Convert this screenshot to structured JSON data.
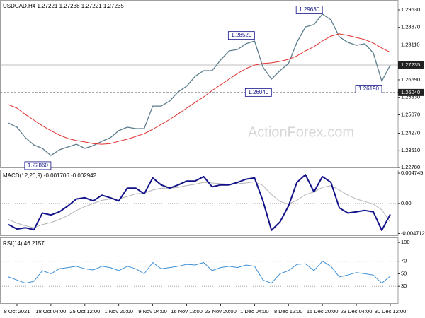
{
  "chart_data": [
    {
      "type": "line",
      "title": "USDCAD,H4  1.27221 1.27238 1.27221 1.27235",
      "watermark": "ActionForex.com",
      "ylim": [
        1.2275,
        1.3006
      ],
      "yticks": [
        {
          "value": 1.2963,
          "label": "1.29630"
        },
        {
          "value": 1.2887,
          "label": "1.28870"
        },
        {
          "value": 1.2811,
          "label": "1.28110"
        },
        {
          "value": 1.2659,
          "label": "1.26590"
        },
        {
          "value": 1.2583,
          "label": "1.25830"
        },
        {
          "value": 1.2507,
          "label": "1.25070"
        },
        {
          "value": 1.2427,
          "label": "1.24270"
        },
        {
          "value": 1.2351,
          "label": "1.23510"
        },
        {
          "value": 1.2278,
          "label": "1.22780"
        }
      ],
      "price_line": {
        "value": 1.27235,
        "label": "1.27235"
      },
      "level": {
        "value": 1.2604,
        "label": "1.26040"
      },
      "annotations": [
        {
          "label": "1.28520",
          "value": 1.2852,
          "x": 29
        },
        {
          "label": "1.29630",
          "value": 1.2963,
          "x": 37
        },
        {
          "label": "1.26040",
          "value": 1.2604,
          "x": 31
        },
        {
          "label": "1.26190",
          "value": 1.2619,
          "x": 44
        },
        {
          "label": "1.22860",
          "value": 1.2286,
          "x": 5
        }
      ],
      "series": [
        {
          "name": "USDCAD",
          "color": "#5b7d8e",
          "width": 1.3,
          "values": [
            1.2471,
            1.2453,
            1.2407,
            1.2376,
            1.2361,
            1.233,
            1.2355,
            1.2367,
            1.2379,
            1.2361,
            1.2373,
            1.2392,
            1.2407,
            1.2438,
            1.2453,
            1.2447,
            1.2447,
            1.2545,
            1.2545,
            1.2567,
            1.2607,
            1.2631,
            1.2674,
            1.2699,
            1.2699,
            1.2745,
            1.2785,
            1.2791,
            1.2816,
            1.2828,
            1.2714,
            1.2662,
            1.2699,
            1.273,
            1.2822,
            1.2889,
            1.2899,
            1.2945,
            1.292,
            1.2846,
            1.2822,
            1.2809,
            1.2816,
            1.2776,
            1.2653,
            1.27235
          ]
        },
        {
          "name": "MA",
          "color": "#e0302e",
          "width": 1,
          "values": [
            1.2551,
            1.2536,
            1.2508,
            1.2484,
            1.2459,
            1.2438,
            1.2419,
            1.2404,
            1.2395,
            1.2389,
            1.2382,
            1.2379,
            1.2382,
            1.2392,
            1.2401,
            1.2413,
            1.2425,
            1.2444,
            1.2465,
            1.2487,
            1.2511,
            1.2536,
            1.2561,
            1.2585,
            1.2613,
            1.2637,
            1.2662,
            1.2687,
            1.2708,
            1.2723,
            1.273,
            1.2733,
            1.2739,
            1.2748,
            1.2763,
            1.2785,
            1.2803,
            1.2828,
            1.2849,
            1.2859,
            1.2852,
            1.2843,
            1.2834,
            1.2819,
            1.2797,
            1.2779
          ]
        }
      ]
    },
    {
      "type": "line",
      "title": "MACD(12,26,9) -0.001706 -0.002942",
      "ylim": [
        -0.0051,
        0.0053
      ],
      "yticks": [
        0.004745,
        {
          "value": 0,
          "label": "0.00"
        },
        -0.004712
      ],
      "levels": [
        0
      ],
      "series": [
        {
          "name": "Signal",
          "color": "#b4b4b4",
          "width": 1,
          "values": [
            -0.0025,
            -0.0031,
            -0.0035,
            -0.0038,
            -0.0033,
            -0.003,
            -0.0025,
            -0.0019,
            -0.0011,
            -0.0005,
            0.0,
            0.0005,
            0.0007,
            0.0007,
            0.0011,
            0.0015,
            0.0016,
            0.0021,
            0.0024,
            0.0024,
            0.0025,
            0.0028,
            0.003,
            0.0033,
            0.0032,
            0.0031,
            0.003,
            0.0031,
            0.0032,
            0.0034,
            0.0028,
            0.0014,
            0.0003,
            -0.0001,
            0.0005,
            0.0014,
            0.0018,
            0.0025,
            0.0028,
            0.0021,
            0.0013,
            0.0007,
            0.0003,
            -0.0001,
            -0.001,
            -0.002942
          ]
        },
        {
          "name": "MACD",
          "color": "#14148a",
          "width": 2,
          "values": [
            -0.0033,
            -0.004,
            -0.0038,
            -0.0041,
            -0.0015,
            -0.0018,
            -0.0013,
            -0.0004,
            0.0007,
            0.0009,
            0.0004,
            0.0013,
            0.0009,
            0.0004,
            0.0024,
            0.0024,
            0.0015,
            0.004,
            0.0029,
            0.0024,
            0.0029,
            0.0035,
            0.0035,
            0.0042,
            0.0026,
            0.0029,
            0.0029,
            0.0033,
            0.0038,
            0.004,
            0.0004,
            -0.0042,
            -0.0029,
            -0.0004,
            0.0033,
            0.0045,
            0.0018,
            0.0042,
            0.0033,
            -0.0007,
            -0.0015,
            -0.0013,
            -0.0011,
            -0.0013,
            -0.0042,
            -0.001706
          ]
        }
      ]
    },
    {
      "type": "line",
      "title": "RSI(14) 46.2157",
      "ylim": [
        2,
        108
      ],
      "yticks": [
        100,
        70,
        50,
        30
      ],
      "levels": [
        70,
        30
      ],
      "categories": [
        null,
        "8 Oct 2021",
        null,
        null,
        null,
        "18 Oct 04:00",
        null,
        null,
        null,
        "25 Oct 12:00",
        null,
        null,
        null,
        "1 Nov 20:00",
        null,
        null,
        null,
        "9 Nov 04:00",
        null,
        null,
        null,
        "16 Nov 12:00",
        null,
        null,
        null,
        "23 Nov 20:00",
        null,
        null,
        null,
        "1 Dec 04:00",
        null,
        null,
        null,
        "8 Dec 12:00",
        null,
        null,
        null,
        "15 Dec 20:00",
        null,
        null,
        null,
        "23 Dec 04:00",
        null,
        null,
        null,
        "30 Dec 12:00"
      ],
      "series": [
        {
          "name": "RSI",
          "color": "#3d8fd6",
          "width": 1,
          "values": [
            45,
            40,
            35,
            38,
            55,
            50,
            58,
            60,
            62,
            58,
            56,
            62,
            60,
            55,
            62,
            58,
            50,
            68,
            58,
            60,
            62,
            65,
            64,
            68,
            55,
            60,
            62,
            60,
            64,
            62,
            40,
            35,
            50,
            55,
            65,
            66,
            55,
            70,
            62,
            45,
            48,
            52,
            50,
            48,
            35,
            46.2157
          ]
        }
      ]
    }
  ]
}
